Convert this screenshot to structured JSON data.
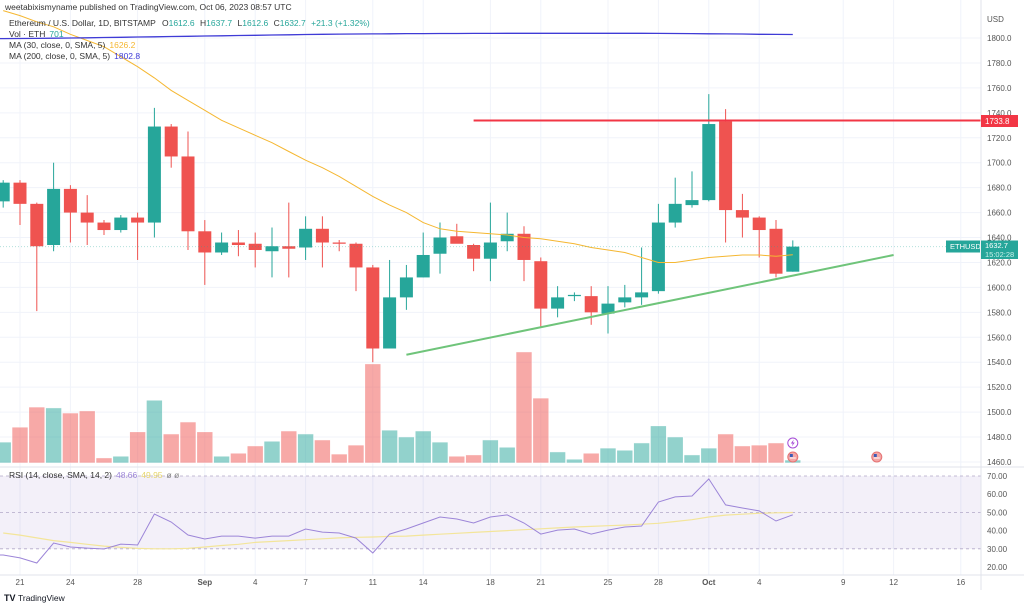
{
  "header": {
    "published": "weetabixismyname published on TradingView.com, Oct 06, 2023 08:57 UTC",
    "symbol_title": "Ethereum / U.S. Dollar, 1D, BITSTAMP",
    "ohlc": {
      "o_label": "O",
      "o": "1612.6",
      "h_label": "H",
      "h": "1637.7",
      "l_label": "L",
      "l": "1612.6",
      "c_label": "C",
      "c": "1632.7",
      "change": "+21.3 (+1.32%)"
    },
    "volume_label": "Vol · ETH",
    "volume_value": "701",
    "ma_short_label": "MA (30, close, 0, SMA, 5)",
    "ma_short_value": "1626.2",
    "ma_long_label": "MA (200, close, 0, SMA, 5)",
    "ma_long_value": "1802.8",
    "rsi_label": "RSI (14, close, SMA, 14, 2)",
    "rsi_value": "48.66",
    "rsi_sma_value": "49.95",
    "rsi_extra": "ø ø"
  },
  "price_axis": {
    "currency": "USD",
    "labels": [
      "1800.0",
      "1780.0",
      "1760.0",
      "1740.0",
      "1720.0",
      "1700.0",
      "1680.0",
      "1660.0",
      "1640.0",
      "1620.0",
      "1600.0",
      "1580.0",
      "1560.0",
      "1540.0",
      "1520.0",
      "1500.0",
      "1480.0",
      "1460.0"
    ],
    "last_price_symbol": "ETHUSD",
    "last_price": "1632.7",
    "countdown": "15:02:28",
    "resistance_label": "1733.8"
  },
  "rsi_axis": {
    "labels": [
      "70.00",
      "60.00",
      "50.00",
      "40.00",
      "30.00",
      "20.00"
    ]
  },
  "time_axis": [
    {
      "date": "2023-08-21",
      "label": "21"
    },
    {
      "date": "2023-08-24",
      "label": "24"
    },
    {
      "date": "2023-08-28",
      "label": "28"
    },
    {
      "date": "2023-09-01",
      "label": "Sep"
    },
    {
      "date": "2023-09-04",
      "label": "4"
    },
    {
      "date": "2023-09-07",
      "label": "7"
    },
    {
      "date": "2023-09-11",
      "label": "11"
    },
    {
      "date": "2023-09-14",
      "label": "14"
    },
    {
      "date": "2023-09-18",
      "label": "18"
    },
    {
      "date": "2023-09-21",
      "label": "21"
    },
    {
      "date": "2023-09-25",
      "label": "25"
    },
    {
      "date": "2023-09-28",
      "label": "28"
    },
    {
      "date": "2023-10-01",
      "label": "Oct"
    },
    {
      "date": "2023-10-04",
      "label": "4"
    },
    {
      "date": "2023-10-09",
      "label": "9"
    },
    {
      "date": "2023-10-12",
      "label": "12"
    },
    {
      "date": "2023-10-16",
      "label": "16"
    }
  ],
  "footer": {
    "brand": "TradingView"
  },
  "colors": {
    "up": "#26a69a",
    "down": "#ef5350",
    "ma_short": "#f5b731",
    "ma_long": "#3f3bd6",
    "rsi": "#9c85d8",
    "rsi_sma": "#f3e59a",
    "resistance": "#f23645",
    "trendline": "#6fc47a"
  },
  "events": [
    {
      "date": "2023-10-06",
      "icon": "lightning-icon"
    },
    {
      "date": "2023-10-06",
      "icon": "us-flag-icon"
    },
    {
      "date": "2023-10-11",
      "icon": "us-flag-icon"
    }
  ],
  "chart_data": {
    "type": "candlestick",
    "title": "Ethereum / U.S. Dollar, 1D, BITSTAMP",
    "ylim": [
      1460,
      1800
    ],
    "rsi_ylim": [
      20,
      70
    ],
    "candles": [
      [
        "2023-08-20",
        1669,
        1686,
        1664,
        1684
      ],
      [
        "2023-08-21",
        1684,
        1686,
        1650,
        1667
      ],
      [
        "2023-08-22",
        1667,
        1668,
        1581,
        1633
      ],
      [
        "2023-08-23",
        1634,
        1700,
        1629,
        1679
      ],
      [
        "2023-08-24",
        1679,
        1682,
        1636,
        1660
      ],
      [
        "2023-08-25",
        1660,
        1674,
        1634,
        1652
      ],
      [
        "2023-08-26",
        1652,
        1654,
        1642,
        1646
      ],
      [
        "2023-08-27",
        1646,
        1658,
        1644,
        1656
      ],
      [
        "2023-08-28",
        1656,
        1660,
        1622,
        1652
      ],
      [
        "2023-08-29",
        1652,
        1744,
        1640,
        1729
      ],
      [
        "2023-08-30",
        1729,
        1731,
        1696,
        1705
      ],
      [
        "2023-08-31",
        1705,
        1725,
        1630,
        1645
      ],
      [
        "2023-09-01",
        1645,
        1654,
        1602,
        1628
      ],
      [
        "2023-09-02",
        1628,
        1644,
        1626,
        1636
      ],
      [
        "2023-09-03",
        1636,
        1646,
        1625,
        1634
      ],
      [
        "2023-09-04",
        1635,
        1644,
        1616,
        1630
      ],
      [
        "2023-09-05",
        1629,
        1648,
        1608,
        1633
      ],
      [
        "2023-09-06",
        1633,
        1668,
        1608,
        1631
      ],
      [
        "2023-09-07",
        1632,
        1657,
        1622,
        1647
      ],
      [
        "2023-09-08",
        1647,
        1657,
        1616,
        1636
      ],
      [
        "2023-09-09",
        1636,
        1638,
        1629,
        1635
      ],
      [
        "2023-09-10",
        1635,
        1636,
        1597,
        1616
      ],
      [
        "2023-09-11",
        1616,
        1618,
        1540,
        1551
      ],
      [
        "2023-09-12",
        1551,
        1622,
        1551,
        1592
      ],
      [
        "2023-09-13",
        1592,
        1618,
        1582,
        1608
      ],
      [
        "2023-09-14",
        1608,
        1644,
        1608,
        1626
      ],
      [
        "2023-09-15",
        1627,
        1652,
        1611,
        1640
      ],
      [
        "2023-09-16",
        1641,
        1651,
        1638,
        1635
      ],
      [
        "2023-09-17",
        1634,
        1635,
        1613,
        1623
      ],
      [
        "2023-09-18",
        1623,
        1668,
        1605,
        1636
      ],
      [
        "2023-09-19",
        1637,
        1660,
        1629,
        1643
      ],
      [
        "2023-09-20",
        1643,
        1649,
        1605,
        1622
      ],
      [
        "2023-09-21",
        1621,
        1624,
        1568,
        1583
      ],
      [
        "2023-09-22",
        1583,
        1601,
        1576,
        1592
      ],
      [
        "2023-09-23",
        1593,
        1596,
        1589,
        1594
      ],
      [
        "2023-09-24",
        1593,
        1601,
        1570,
        1580
      ],
      [
        "2023-09-25",
        1579,
        1601,
        1563,
        1587
      ],
      [
        "2023-09-26",
        1588,
        1602,
        1584,
        1592
      ],
      [
        "2023-09-27",
        1592,
        1632,
        1586,
        1596
      ],
      [
        "2023-09-28",
        1597,
        1667,
        1595,
        1652
      ],
      [
        "2023-09-29",
        1652,
        1688,
        1648,
        1667
      ],
      [
        "2023-09-30",
        1666,
        1693,
        1664,
        1670
      ],
      [
        "2023-10-01",
        1670,
        1755,
        1669,
        1731
      ],
      [
        "2023-10-02",
        1733,
        1743,
        1636,
        1662
      ],
      [
        "2023-10-03",
        1662,
        1675,
        1640,
        1656
      ],
      [
        "2023-10-04",
        1656,
        1657,
        1624,
        1646
      ],
      [
        "2023-10-05",
        1647,
        1654,
        1608,
        1611
      ],
      [
        "2023-10-06",
        1612.6,
        1637.7,
        1612.6,
        1632.7
      ]
    ],
    "volume": [
      4900,
      8400,
      13100,
      12900,
      11700,
      12200,
      1200,
      1600,
      7300,
      14700,
      6800,
      9600,
      7300,
      1600,
      2300,
      4000,
      5100,
      7500,
      6800,
      5400,
      2100,
      4200,
      23200,
      7700,
      6100,
      7500,
      4900,
      1600,
      1900,
      5400,
      3700,
      26000,
      15200,
      2600,
      900,
      2300,
      3500,
      3000,
      4700,
      8700,
      6100,
      1900,
      3500,
      6800,
      4000,
      4200,
      4700,
      701
    ],
    "ma_short": [
      1822,
      1818,
      1813,
      1809,
      1803,
      1798,
      1793,
      1785,
      1777,
      1768,
      1758,
      1750,
      1742,
      1734,
      1728,
      1722,
      1716,
      1709,
      1702,
      1696,
      1689,
      1681,
      1673,
      1666,
      1660,
      1652,
      1647,
      1645,
      1644,
      1643,
      1642,
      1640,
      1639,
      1637,
      1635,
      1632,
      1630,
      1628,
      1624,
      1620,
      1620,
      1622,
      1624,
      1625,
      1626,
      1626,
      1625,
      1626.2
    ],
    "ma_long": [
      1799.5,
      1799.6,
      1799.7,
      1799.8,
      1800,
      1800.2,
      1800.4,
      1800.6,
      1800.8,
      1801,
      1801.2,
      1801.4,
      1801.6,
      1801.8,
      1802,
      1802.2,
      1802.4,
      1802.6,
      1802.8,
      1803,
      1803.1,
      1803.2,
      1803.3,
      1803.4,
      1803.5,
      1803.5,
      1803.6,
      1803.6,
      1803.7,
      1803.7,
      1803.8,
      1803.8,
      1803.8,
      1803.8,
      1803.8,
      1803.8,
      1803.8,
      1803.8,
      1803.8,
      1803.7,
      1803.6,
      1803.5,
      1803.4,
      1803.3,
      1803.2,
      1803,
      1802.9,
      1802.8
    ],
    "rsi": [
      26.6,
      25.0,
      22.2,
      33.2,
      31.0,
      30.4,
      29.9,
      32.6,
      32.1,
      49.1,
      44.7,
      37.6,
      35.4,
      37.0,
      37.0,
      35.9,
      37.0,
      37.0,
      40.9,
      39.2,
      38.7,
      35.9,
      27.7,
      38.1,
      40.9,
      44.2,
      47.5,
      46.4,
      44.2,
      47.5,
      48.6,
      44.2,
      38.1,
      40.3,
      40.9,
      38.1,
      40.3,
      42.0,
      42.5,
      55.7,
      58.5,
      59.0,
      68.4,
      54.1,
      52.4,
      50.8,
      45.3,
      48.66
    ],
    "rsi_sma": [
      38.7,
      37.5,
      36,
      34.5,
      33.5,
      32.5,
      31.5,
      30.8,
      30.2,
      30,
      30,
      30.2,
      31,
      31.8,
      32.5,
      33.5,
      34,
      34.5,
      35,
      35.5,
      36,
      36.3,
      36.5,
      36.8,
      37,
      37.5,
      38,
      38.5,
      39,
      39.5,
      40,
      40.5,
      41,
      41.5,
      42,
      42.3,
      42.7,
      43,
      43.5,
      44,
      45,
      46,
      47.5,
      48.5,
      49,
      49.5,
      49.8,
      49.95
    ],
    "rsi_levels": [
      70,
      50,
      30
    ],
    "horizontal_line": {
      "price": 1733.8,
      "from": "2023-09-17"
    },
    "trendline": {
      "from": [
        "2023-09-13",
        1546
      ],
      "to": [
        "2023-10-12",
        1626
      ]
    }
  }
}
